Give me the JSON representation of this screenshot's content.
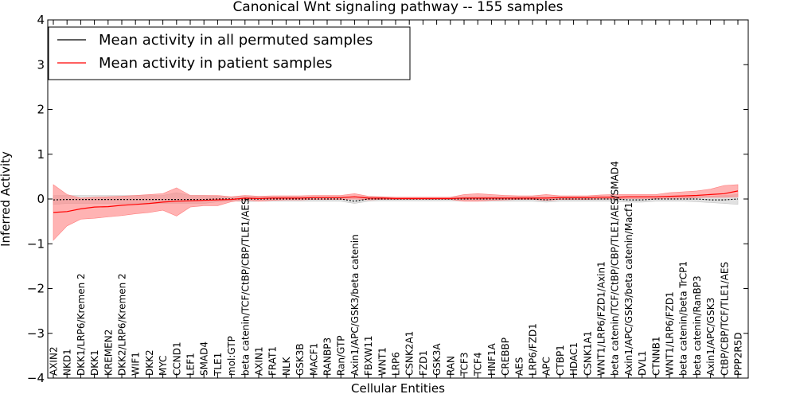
{
  "chart_data": {
    "type": "line",
    "title": "Canonical Wnt signaling pathway -- 155 samples",
    "xlabel": "Cellular Entities",
    "ylabel": "Inferred Activity",
    "ylim": [
      -4,
      4
    ],
    "yticks": [
      -4,
      -3,
      -2,
      -1,
      0,
      1,
      2,
      3,
      4
    ],
    "ytick_labels": [
      "−4",
      "−3",
      "−2",
      "−1",
      "0",
      "1",
      "2",
      "3",
      "4"
    ],
    "legend_position": "top-left",
    "grid": false,
    "categories": [
      "AXIN2",
      "NKD1",
      "DKK1/LRP6/Kremen 2",
      "DKK1",
      "KREMEN2",
      "DKK2/LRP6/Kremen 2",
      "WIF1",
      "DKK2",
      "MYC",
      "CCND1",
      "LEF1",
      "SMAD4",
      "TLE1",
      "mol:GTP",
      "beta catenin/TCF/CtBP/CBP/TLE1/AES",
      "AXIN1",
      "FRAT1",
      "NLK",
      "GSK3B",
      "MACF1",
      "RANBP3",
      "Ran/GTP",
      "Axin1/APC/GSK3/beta catenin",
      "FBXW11",
      "WNT1",
      "LRP6",
      "CSNK2A1",
      "FZD1",
      "GSK3A",
      "RAN",
      "TCF3",
      "TCF4",
      "HNF1A",
      "CREBBP",
      "AES",
      "LRP6/FZD1",
      "APC",
      "CTBP1",
      "HDAC1",
      "CSNK1A1",
      "WNT1/LRP6/FZD1/Axin1",
      "beta catenin/TCF/CtBP/CBP/TLE1/AES/SMAD4",
      "Axin1/APC/GSK3/beta catenin/Macf1",
      "DVL1",
      "CTNNB1",
      "WNT1/LRP6/FZD1",
      "beta catenin/beta TrCP1",
      "beta catenin/RanBP3",
      "Axin1/APC/GSK3",
      "CtBP/CBP/TCF/TLE1/AES",
      "PPP2R5D"
    ],
    "series": [
      {
        "name": "Mean activity in all permuted samples",
        "color": "#000000",
        "band_color": "#c8c8c8",
        "values": [
          -0.02,
          -0.01,
          -0.01,
          -0.01,
          -0.01,
          -0.01,
          -0.01,
          -0.01,
          -0.01,
          -0.01,
          -0.01,
          -0.01,
          0,
          0,
          0,
          0,
          0,
          0,
          0,
          0,
          0,
          0,
          -0.05,
          0,
          0,
          0,
          0,
          0,
          0,
          0,
          0,
          0,
          0,
          0,
          0,
          0,
          -0.02,
          0,
          0,
          0,
          0,
          0,
          -0.02,
          -0.02,
          0,
          0,
          0,
          0,
          -0.02,
          -0.02,
          0
        ],
        "lower": [
          -0.12,
          -0.1,
          -0.1,
          -0.1,
          -0.1,
          -0.1,
          -0.1,
          -0.1,
          -0.1,
          -0.1,
          -0.1,
          -0.1,
          -0.06,
          -0.04,
          -0.06,
          -0.05,
          -0.05,
          -0.05,
          -0.05,
          -0.05,
          -0.05,
          -0.05,
          -0.1,
          -0.05,
          -0.04,
          -0.04,
          -0.04,
          -0.04,
          -0.04,
          -0.04,
          -0.05,
          -0.05,
          -0.05,
          -0.05,
          -0.05,
          -0.05,
          -0.07,
          -0.05,
          -0.05,
          -0.05,
          -0.05,
          -0.05,
          -0.07,
          -0.07,
          -0.05,
          -0.05,
          -0.05,
          -0.06,
          -0.08,
          -0.1,
          -0.12
        ],
        "upper": [
          0.08,
          0.08,
          0.08,
          0.08,
          0.08,
          0.08,
          0.08,
          0.08,
          0.08,
          0.14,
          0.08,
          0.08,
          0.06,
          0.04,
          0.06,
          0.05,
          0.05,
          0.05,
          0.05,
          0.05,
          0.05,
          0.05,
          0.05,
          0.05,
          0.04,
          0.04,
          0.04,
          0.04,
          0.04,
          0.04,
          0.05,
          0.05,
          0.05,
          0.05,
          0.05,
          0.05,
          0.05,
          0.05,
          0.05,
          0.05,
          0.05,
          0.05,
          0.05,
          0.05,
          0.05,
          0.05,
          0.05,
          0.06,
          0.06,
          0.08,
          0.1
        ]
      },
      {
        "name": "Mean activity in patient samples",
        "color": "#ff0000",
        "band_color": "#ff8080",
        "values": [
          -0.3,
          -0.28,
          -0.22,
          -0.18,
          -0.17,
          -0.14,
          -0.12,
          -0.1,
          -0.07,
          -0.05,
          -0.04,
          -0.03,
          -0.02,
          -0.01,
          0.02,
          0.01,
          0.02,
          0.02,
          0.02,
          0.03,
          0.03,
          0.03,
          0.05,
          0.02,
          0.02,
          0.01,
          0.01,
          0.01,
          0.01,
          0.01,
          0.02,
          0.02,
          0.02,
          0.02,
          0.02,
          0.02,
          0.02,
          0.03,
          0.03,
          0.03,
          0.04,
          0.04,
          0.05,
          0.05,
          0.05,
          0.06,
          0.07,
          0.08,
          0.1,
          0.12,
          0.18
        ],
        "lower": [
          -0.92,
          -0.6,
          -0.45,
          -0.43,
          -0.4,
          -0.37,
          -0.33,
          -0.3,
          -0.25,
          -0.38,
          -0.18,
          -0.15,
          -0.15,
          -0.06,
          -0.02,
          -0.05,
          -0.03,
          -0.02,
          -0.02,
          -0.01,
          -0.01,
          -0.01,
          0,
          -0.02,
          -0.01,
          -0.01,
          -0.01,
          -0.01,
          -0.01,
          -0.01,
          -0.05,
          -0.05,
          -0.03,
          -0.02,
          -0.01,
          -0.01,
          -0.03,
          -0.01,
          -0.01,
          -0.01,
          0,
          0,
          0.01,
          0.01,
          0.01,
          0.02,
          0.02,
          0.03,
          0.04,
          0.04,
          0.05
        ],
        "upper": [
          0.32,
          0.1,
          0.02,
          0.04,
          0.05,
          0.06,
          0.08,
          0.1,
          0.12,
          0.25,
          0.08,
          0.08,
          0.08,
          0.05,
          0.08,
          0.06,
          0.07,
          0.07,
          0.07,
          0.08,
          0.08,
          0.08,
          0.12,
          0.06,
          0.05,
          0.04,
          0.04,
          0.04,
          0.04,
          0.04,
          0.1,
          0.12,
          0.1,
          0.08,
          0.07,
          0.07,
          0.1,
          0.07,
          0.07,
          0.07,
          0.09,
          0.1,
          0.1,
          0.1,
          0.1,
          0.14,
          0.16,
          0.18,
          0.22,
          0.3,
          0.32
        ]
      }
    ]
  }
}
